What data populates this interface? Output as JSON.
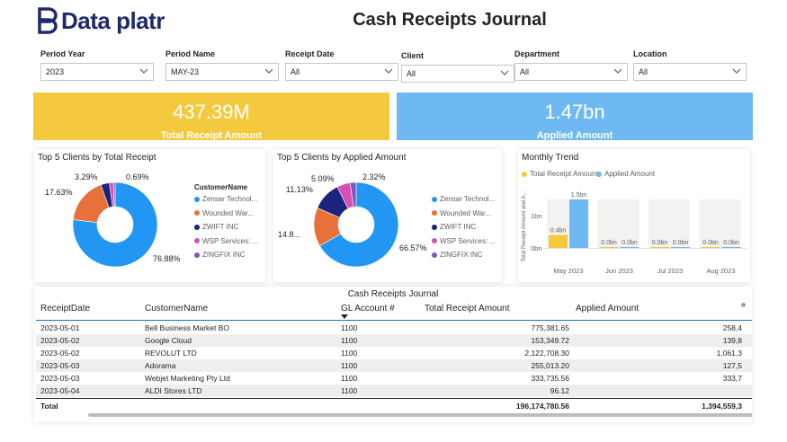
{
  "brand": {
    "logo_text": "Data platr"
  },
  "page_title": "Cash Receipts Journal",
  "filters": [
    {
      "label": "Period Year",
      "value": "2023"
    },
    {
      "label": "Period Name",
      "value": "MAY-23"
    },
    {
      "label": "Receipt Date",
      "value": "All"
    },
    {
      "label": "Client",
      "value": "All"
    },
    {
      "label": "Department",
      "value": "All"
    },
    {
      "label": "Location",
      "value": "All"
    }
  ],
  "kpis": [
    {
      "value": "437.39M",
      "label": "Total Receipt Amount",
      "color": "#f5c93e"
    },
    {
      "value": "1.47bn",
      "label": "Applied Amount",
      "color": "#6fb9f2"
    }
  ],
  "legend_title": "CustomerName",
  "clients_total": {
    "title": "Top 5 Clients by Total Receipt",
    "legend": [
      "Zensar Technol...",
      "Wounded War...",
      "ZWIFT INC",
      "WSP Services: ...",
      "ZINGFIX INC"
    ],
    "slice_labels": [
      "76.88%",
      "17.63%",
      "3.29%",
      "",
      "0.69%"
    ],
    "values": [
      76.88,
      17.63,
      3.29,
      1.51,
      0.69
    ]
  },
  "clients_applied": {
    "title": "Top 5 Clients by Applied Amount",
    "legend": [
      "Zensar Technol...",
      "Wounded War...",
      "ZWIFT INC",
      "WSP Services: ...",
      "ZINGFIX INC"
    ],
    "slice_labels": [
      "66.57%",
      "14.8...",
      "11.13%",
      "5.09%",
      "2.32%"
    ],
    "values": [
      66.57,
      14.89,
      11.13,
      5.09,
      2.32
    ]
  },
  "slice_colors": [
    "#2196f3",
    "#e8703a",
    "#1a237e",
    "#d94fb4",
    "#7e57c2"
  ],
  "monthly_trend": {
    "title": "Monthly Trend",
    "legend": [
      {
        "name": "Total Receipt Amount",
        "color": "#f5c93e"
      },
      {
        "name": "Applied Amount",
        "color": "#6fb9f2"
      }
    ],
    "ylabel": "Total Receipt Amount and A...",
    "yticks": [
      "1bn",
      "0bn"
    ]
  },
  "chart_data": {
    "type": "bar",
    "title": "Monthly Trend",
    "categories": [
      "May 2023",
      "Jun 2023",
      "Jul 2023",
      "Aug 2023"
    ],
    "series": [
      {
        "name": "Total Receipt Amount",
        "values": [
          0.4,
          0,
          0,
          0
        ],
        "labels": [
          "0.4bn",
          "0.0bn",
          "0.0bn",
          "0.0bn"
        ]
      },
      {
        "name": "Applied Amount",
        "values": [
          1.5,
          0,
          0,
          0
        ],
        "labels": [
          "1.5bn",
          "0.0bn",
          "0.0bn",
          "0.0bn"
        ]
      }
    ],
    "ylabel": "Total Receipt Amount and A...",
    "ylim": [
      0,
      1.5
    ]
  },
  "journal": {
    "title": "Cash Receipts Journal",
    "columns": [
      "ReceiptDate",
      "CustomerName",
      "GL Account #",
      "Total Receipt Amount",
      "Applied Amount"
    ],
    "rows": [
      [
        "2023-05-01",
        "Bell Business Market BO",
        "1100",
        "775,381.65",
        "258,4"
      ],
      [
        "2023-05-02",
        "Google Cloud",
        "1100",
        "153,349.72",
        "139,8"
      ],
      [
        "2023-05-02",
        "REVOLUT LTD",
        "1100",
        "2,122,708.30",
        "1,061,3"
      ],
      [
        "2023-05-03",
        "Adorama",
        "1100",
        "255,013.20",
        "127,5"
      ],
      [
        "2023-05-03",
        "Webjet Marketing Pty Ltd",
        "1100",
        "333,735.56",
        "333,7"
      ],
      [
        "2023-05-04",
        "ALDI Stores LTD",
        "1100",
        "96.12",
        ""
      ]
    ],
    "total": {
      "label": "Total",
      "receipt": "196,174,780.56",
      "applied": "1,394,559,3"
    }
  }
}
